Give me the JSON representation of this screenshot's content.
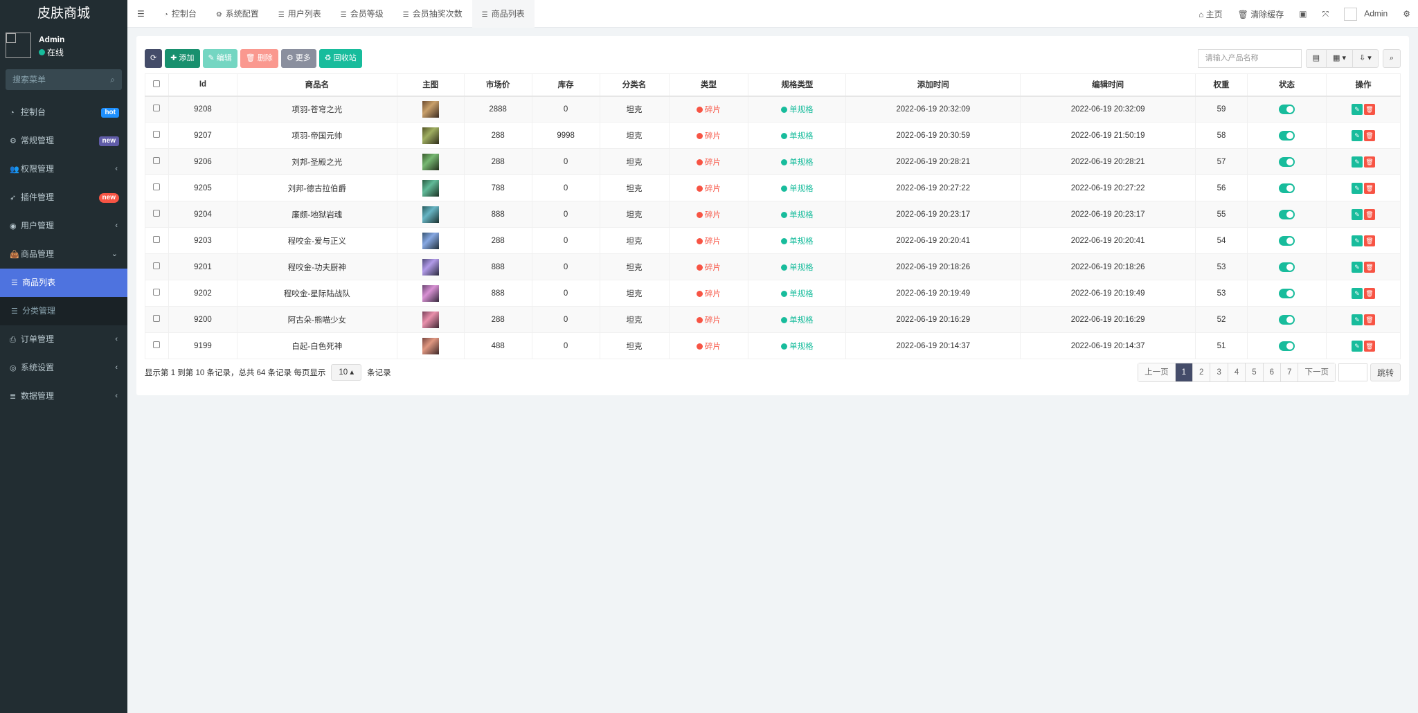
{
  "app": {
    "title": "皮肤商城"
  },
  "user": {
    "name": "Admin",
    "status": "在线"
  },
  "sidebar": {
    "search_placeholder": "搜索菜单",
    "items": [
      {
        "label": "控制台",
        "icon": "dashboard-icon",
        "badge": "hot",
        "badge_color": "#1e90ff"
      },
      {
        "label": "常规管理",
        "icon": "cogs-icon",
        "badge": "new",
        "badge_color": "#605ca8"
      },
      {
        "label": "权限管理",
        "icon": "users-icon",
        "arrow": "‹"
      },
      {
        "label": "插件管理",
        "icon": "rocket-icon",
        "badge": "new",
        "badge_color": "#f75444"
      },
      {
        "label": "用户管理",
        "icon": "user-circle-icon",
        "arrow": "‹"
      },
      {
        "label": "商品管理",
        "icon": "shopping-bag-icon",
        "arrow": "⌄"
      },
      {
        "label": "商品列表",
        "icon": "list-icon"
      },
      {
        "label": "分类管理",
        "icon": "list-icon"
      },
      {
        "label": "订单管理",
        "icon": "print-icon",
        "arrow": "‹"
      },
      {
        "label": "系统设置",
        "icon": "circle-icon",
        "arrow": "‹"
      },
      {
        "label": "数据管理",
        "icon": "database-icon",
        "arrow": "‹"
      }
    ]
  },
  "header": {
    "tabs": [
      {
        "label": "控制台"
      },
      {
        "label": "系统配置"
      },
      {
        "label": "用户列表"
      },
      {
        "label": "会员等级"
      },
      {
        "label": "会员抽奖次数"
      },
      {
        "label": "商品列表"
      }
    ],
    "home": "主页",
    "clear_cache": "清除缓存",
    "admin": "Admin"
  },
  "toolbar": {
    "add": "添加",
    "edit": "编辑",
    "delete": "删除",
    "more": "更多",
    "recycle": "回收站",
    "search_placeholder": "请输入产品名称"
  },
  "table": {
    "columns": [
      "Id",
      "商品名",
      "主图",
      "市场价",
      "库存",
      "分类名",
      "类型",
      "规格类型",
      "添加时间",
      "编辑时间",
      "权重",
      "状态",
      "操作"
    ],
    "rows": [
      [
        "9208",
        "项羽-苍穹之光",
        "2888",
        "0",
        "坦克",
        "碎片",
        "单规格",
        "2022-06-19 20:32:09",
        "2022-06-19 20:32:09",
        "59"
      ],
      [
        "9207",
        "项羽-帝国元帅",
        "288",
        "9998",
        "坦克",
        "碎片",
        "单规格",
        "2022-06-19 20:30:59",
        "2022-06-19 21:50:19",
        "58"
      ],
      [
        "9206",
        "刘邦-圣殿之光",
        "288",
        "0",
        "坦克",
        "碎片",
        "单规格",
        "2022-06-19 20:28:21",
        "2022-06-19 20:28:21",
        "57"
      ],
      [
        "9205",
        "刘邦-德古拉伯爵",
        "788",
        "0",
        "坦克",
        "碎片",
        "单规格",
        "2022-06-19 20:27:22",
        "2022-06-19 20:27:22",
        "56"
      ],
      [
        "9204",
        "廉颇-地狱岩魂",
        "888",
        "0",
        "坦克",
        "碎片",
        "单规格",
        "2022-06-19 20:23:17",
        "2022-06-19 20:23:17",
        "55"
      ],
      [
        "9203",
        "程咬金-爱与正义",
        "288",
        "0",
        "坦克",
        "碎片",
        "单规格",
        "2022-06-19 20:20:41",
        "2022-06-19 20:20:41",
        "54"
      ],
      [
        "9201",
        "程咬金-功夫厨神",
        "888",
        "0",
        "坦克",
        "碎片",
        "单规格",
        "2022-06-19 20:18:26",
        "2022-06-19 20:18:26",
        "53"
      ],
      [
        "9202",
        "程咬金-星际陆战队",
        "888",
        "0",
        "坦克",
        "碎片",
        "单规格",
        "2022-06-19 20:19:49",
        "2022-06-19 20:19:49",
        "53"
      ],
      [
        "9200",
        "阿古朵-熊喵少女",
        "288",
        "0",
        "坦克",
        "碎片",
        "单规格",
        "2022-06-19 20:16:29",
        "2022-06-19 20:16:29",
        "52"
      ],
      [
        "9199",
        "白起-白色死神",
        "488",
        "0",
        "坦克",
        "碎片",
        "单规格",
        "2022-06-19 20:14:37",
        "2022-06-19 20:14:37",
        "51"
      ]
    ]
  },
  "pagination": {
    "info": "显示第 1 到第 10 条记录，总共 64 条记录 每页显示",
    "page_size": "10",
    "suffix": "条记录",
    "prev": "上一页",
    "next": "下一页",
    "pages": [
      "1",
      "2",
      "3",
      "4",
      "5",
      "6",
      "7"
    ],
    "current": "1",
    "jump": "跳转"
  },
  "colors": {
    "sidebar": "#222d32",
    "active": "#4e73df",
    "red": "#f75444",
    "green": "#18bc9c"
  }
}
